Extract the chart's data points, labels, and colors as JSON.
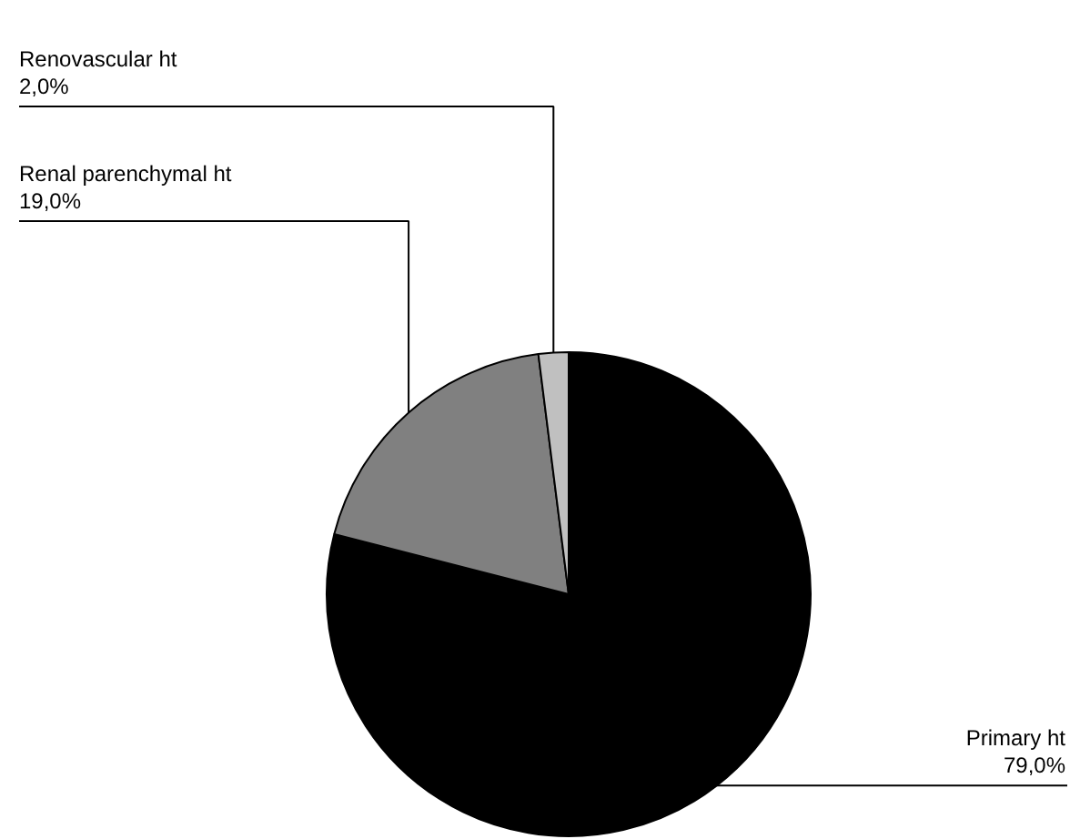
{
  "chart_data": {
    "type": "pie",
    "categories": [
      "Primary ht",
      "Renal parenchymal ht",
      "Renovascular ht"
    ],
    "values": [
      79,
      19,
      2
    ],
    "colors": [
      "#000000",
      "#808080",
      "#c0c0c0"
    ],
    "value_labels": [
      "79,0%",
      "19,0%",
      "2,0%"
    ]
  }
}
